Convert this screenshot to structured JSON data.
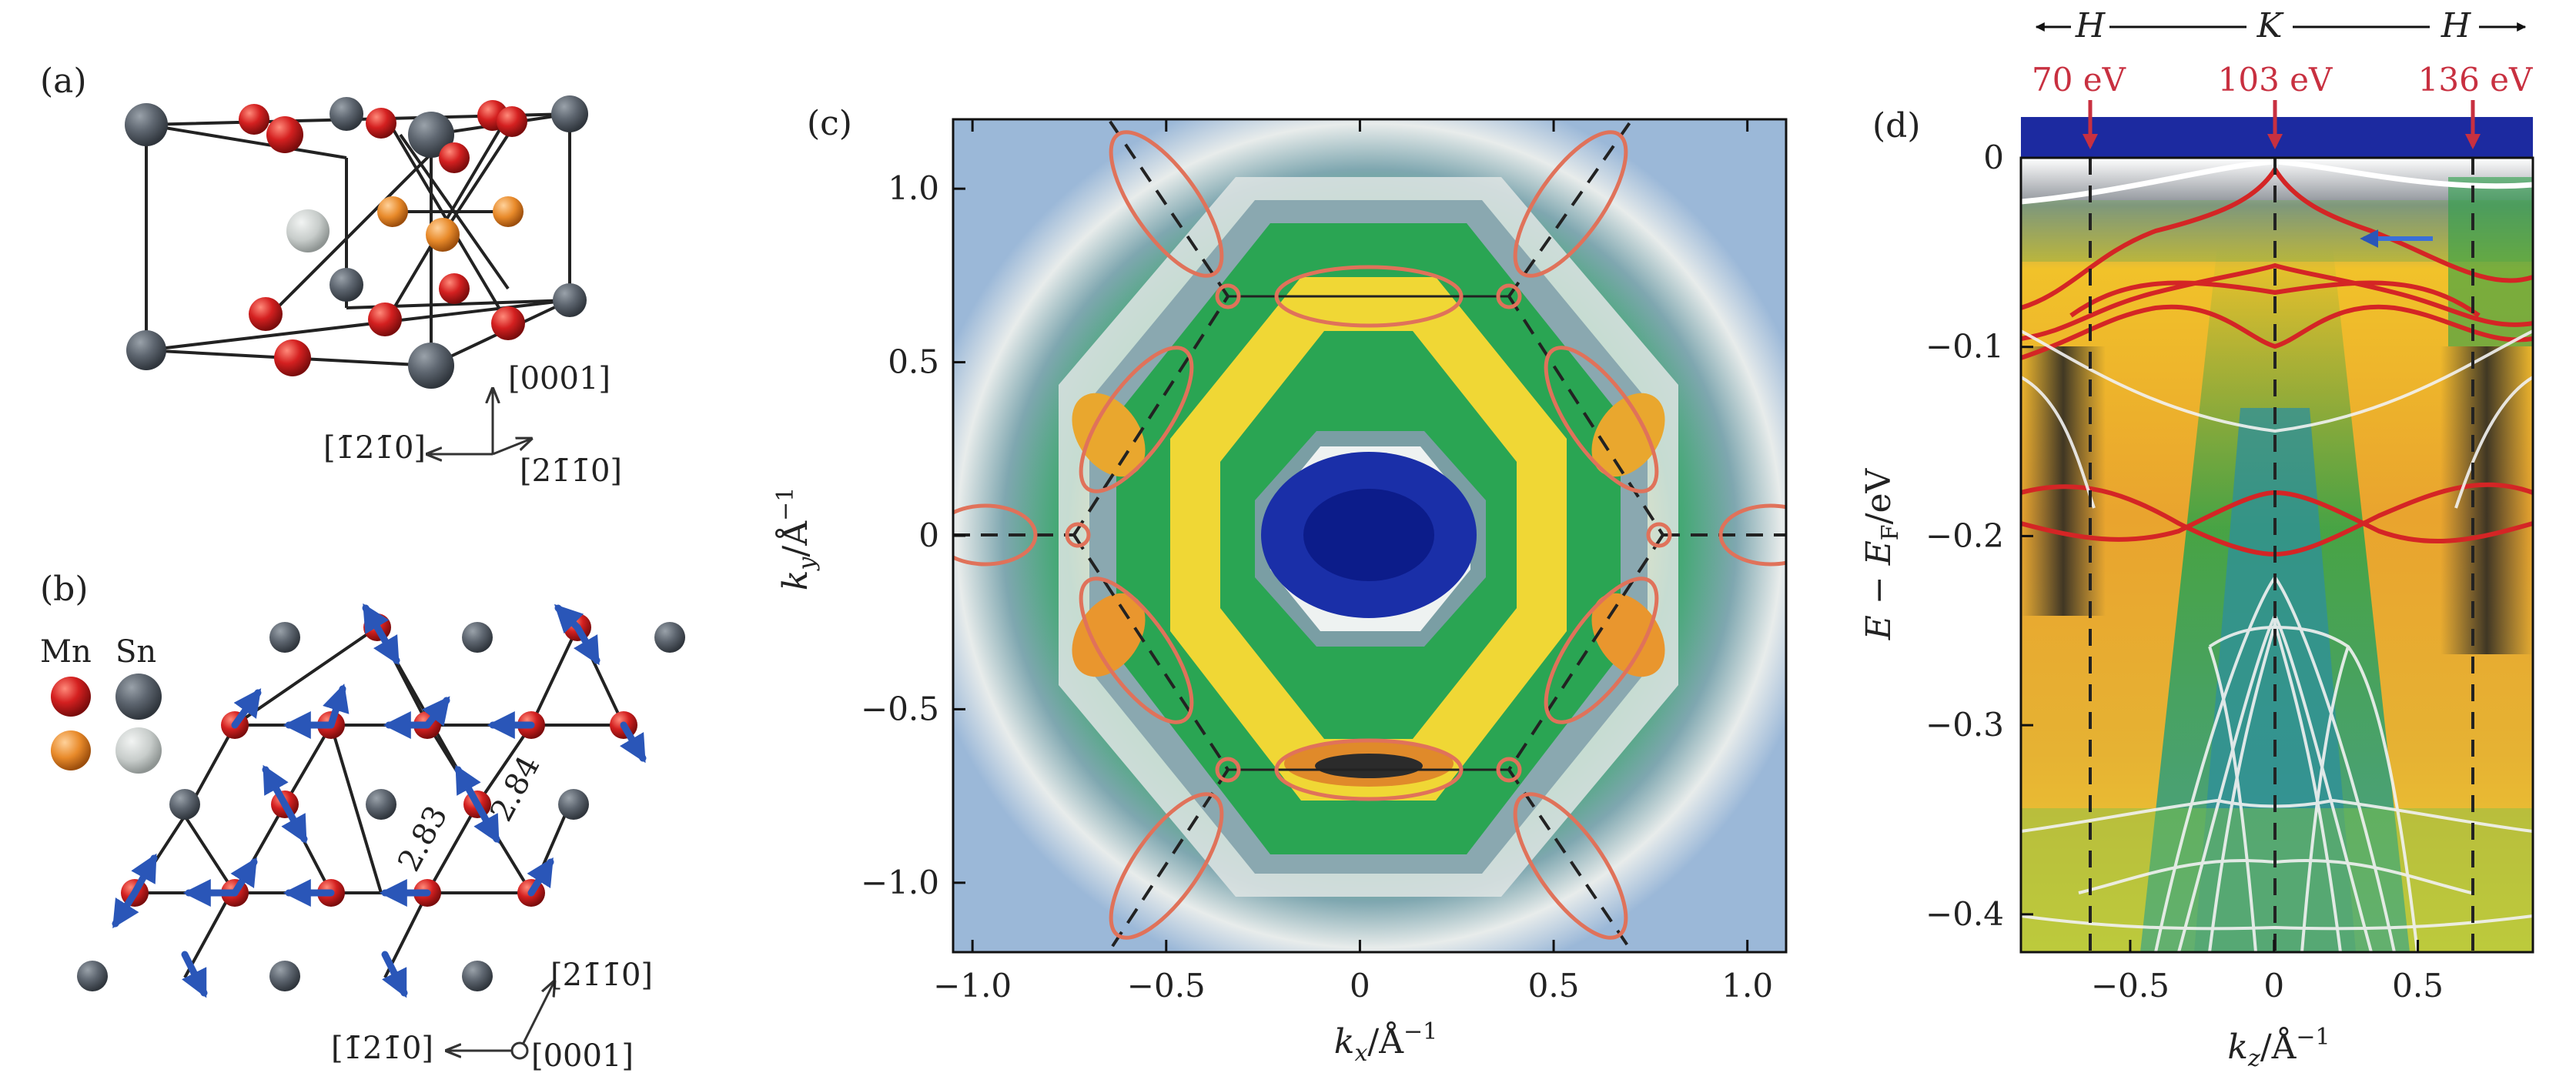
{
  "panels": {
    "a": {
      "label": "(a)",
      "directions": [
        "[0001]",
        "[1̄21̄0]",
        "[21̄1̄0]"
      ]
    },
    "b": {
      "label": "(b)",
      "legend": [
        "Mn",
        "Sn"
      ],
      "bond_lengths": [
        "2.83",
        "2.84"
      ],
      "directions": [
        "[21̄1̄0]",
        "[1̄21̄0]",
        "[0001]"
      ]
    },
    "c": {
      "label": "(c)",
      "xlabel": "kx/Å⁻¹",
      "ylabel": "ky/Å⁻¹"
    },
    "d": {
      "label": "(d)",
      "path_labels": [
        "H",
        "K",
        "H"
      ],
      "photon_energies": [
        "70 eV",
        "103 eV",
        "136 eV"
      ],
      "xlabel": "kz/Å⁻¹",
      "ylabel": "E − EF/eV"
    }
  },
  "colors": {
    "mn": "#d42020",
    "sn_dark": "#5e6670",
    "sn_light": "#c7ccca",
    "mn_orange": "#e88a2a",
    "spin_arrow": "#2a56b8",
    "ellipse": "#e0725a",
    "band_red": "#d42525",
    "annotation_red": "#c83040"
  },
  "chart_data": [
    {
      "panel": "c",
      "type": "heatmap",
      "description_free": true,
      "xlabel": "kx/Å⁻¹",
      "ylabel": "ky/Å⁻¹",
      "xlim": [
        -1.05,
        1.1
      ],
      "ylim": [
        -1.2,
        1.2
      ],
      "xticks": [
        -1.0,
        -0.5,
        0,
        0.5,
        1.0
      ],
      "xtick_labels": [
        "−1.0",
        "−0.5",
        "0",
        "0.5",
        "1.0"
      ],
      "yticks": [
        1.0,
        0.5,
        0,
        -0.5,
        -1.0
      ],
      "ytick_labels": [
        "1.0",
        "0.5",
        "0",
        "−0.5",
        "−1.0"
      ],
      "hexagon_vertices": [
        [
          0.75,
          0
        ],
        [
          0.38,
          0.64
        ],
        [
          -0.38,
          0.64
        ],
        [
          -0.75,
          0
        ],
        [
          -0.38,
          -0.64
        ],
        [
          0.38,
          -0.64
        ]
      ],
      "ellipse_pockets": [
        [
          0,
          0.64
        ],
        [
          0,
          -0.64
        ],
        [
          -0.56,
          0.33
        ],
        [
          0.56,
          0.33
        ],
        [
          -0.56,
          -0.33
        ],
        [
          0.56,
          -0.33
        ],
        [
          -0.52,
          0.95
        ],
        [
          0.52,
          0.95
        ],
        [
          -0.52,
          -0.95
        ],
        [
          0.52,
          -0.95
        ],
        [
          -1.0,
          0
        ],
        [
          1.05,
          0
        ]
      ]
    },
    {
      "panel": "d",
      "type": "heatmap",
      "xlabel": "kz/Å⁻¹",
      "ylabel": "E − EF/eV",
      "xlim": [
        -0.88,
        0.9
      ],
      "ylim": [
        -0.42,
        0
      ],
      "xticks": [
        -0.5,
        0,
        0.5
      ],
      "xtick_labels": [
        "−0.5",
        "0",
        "0.5"
      ],
      "yticks": [
        0,
        -0.1,
        -0.2,
        -0.3,
        -0.4
      ],
      "ytick_labels": [
        "0",
        "−0.1",
        "−0.2",
        "−0.3",
        "−0.4"
      ],
      "vertical_lines_kz": [
        -0.68,
        0,
        0.7
      ]
    }
  ]
}
